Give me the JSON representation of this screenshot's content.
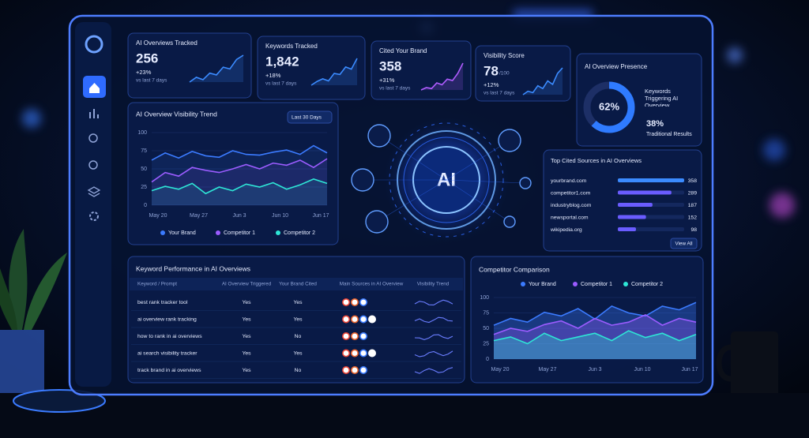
{
  "kpis": [
    {
      "title": "AI Overviews Tracked",
      "value": "256",
      "change": "+23%",
      "note": "vs last 7 days",
      "sparkline": [
        30,
        38,
        34,
        45,
        42,
        55,
        52,
        68,
        75
      ]
    },
    {
      "title": "Keywords Tracked",
      "value": "1,842",
      "change": "+18%",
      "note": "vs last 7 days",
      "sparkline": [
        28,
        35,
        40,
        36,
        50,
        48,
        62,
        58,
        78
      ]
    },
    {
      "title": "Cited Your Brand",
      "value": "358",
      "change": "+31%",
      "note": "vs last 7 days",
      "sparkline": [
        25,
        30,
        28,
        40,
        36,
        48,
        45,
        60,
        82
      ]
    },
    {
      "title": "Visibility Score",
      "value": "78",
      "suffix": "/100",
      "change": "+12%",
      "note": "vs last 7 days",
      "sparkline": [
        35,
        40,
        38,
        48,
        44,
        55,
        50,
        66,
        74
      ]
    }
  ],
  "presence": {
    "title": "AI Overview Presence",
    "primary": {
      "value": 62,
      "label": "62%"
    },
    "primary_text": "Keywords Triggering AI Overview",
    "secondary": {
      "value": 38,
      "label": "38%"
    },
    "secondary_text": "Traditional Results"
  },
  "trend": {
    "type": "line",
    "title": "AI Overview Visibility Trend",
    "filter": "Last 30 Days",
    "ylim": [
      0,
      100
    ],
    "yticks": [
      0,
      25,
      50,
      75,
      100
    ],
    "xticks": [
      "May 20",
      "May 27",
      "Jun 3",
      "Jun 10",
      "Jun 17"
    ],
    "series": [
      {
        "name": "Your Brand",
        "color": "#3b7bff",
        "values": [
          62,
          72,
          65,
          74,
          68,
          66,
          75,
          70,
          69,
          73,
          76,
          70,
          82,
          72
        ]
      },
      {
        "name": "Competitor 1",
        "color": "#9b5cff",
        "values": [
          32,
          45,
          40,
          52,
          48,
          45,
          50,
          56,
          50,
          58,
          55,
          62,
          52,
          64
        ]
      },
      {
        "name": "Competitor 2",
        "color": "#2ee6d6",
        "values": [
          20,
          26,
          22,
          30,
          16,
          25,
          20,
          29,
          25,
          31,
          22,
          28,
          36,
          30
        ]
      }
    ]
  },
  "center": {
    "label": "AI"
  },
  "sources": {
    "title": "Top Cited Sources in AI Overviews",
    "items": [
      {
        "name": "yourbrand.com",
        "value": 358
      },
      {
        "name": "competitor1.com",
        "value": 289
      },
      {
        "name": "industryblog.com",
        "value": 187
      },
      {
        "name": "newsportal.com",
        "value": 152
      },
      {
        "name": "wikipedia.org",
        "value": 98
      }
    ],
    "button": "View All"
  },
  "table": {
    "title": "Keyword Performance in AI Overviews",
    "headers": [
      "Keyword / Prompt",
      "AI Overview Triggered",
      "Your Brand Cited",
      "Main Sources in AI Overview",
      "Visibility Trend"
    ],
    "rows": [
      [
        "best rank tracker tool",
        "Yes",
        "Yes"
      ],
      [
        "ai overview rank tracking",
        "Yes",
        "Yes"
      ],
      [
        "how to rank in ai overviews",
        "Yes",
        "No"
      ],
      [
        "ai search visibility tracker",
        "Yes",
        "Yes"
      ],
      [
        "track brand in ai overviews",
        "Yes",
        "No"
      ]
    ]
  },
  "competitor": {
    "type": "area",
    "title": "Competitor Comparison",
    "ylim": [
      0,
      100
    ],
    "yticks": [
      0,
      25,
      50,
      75,
      100
    ],
    "xticks": [
      "May 20",
      "May 27",
      "Jun 3",
      "Jun 10",
      "Jun 17"
    ],
    "series": [
      {
        "name": "Your Brand",
        "color": "#3b7bff",
        "values": [
          55,
          66,
          60,
          76,
          70,
          82,
          65,
          86,
          75,
          70,
          86,
          80,
          92
        ]
      },
      {
        "name": "Competitor 1",
        "color": "#9b5cff",
        "values": [
          40,
          50,
          45,
          56,
          62,
          50,
          66,
          55,
          60,
          72,
          55,
          66,
          60
        ]
      },
      {
        "name": "Competitor 2",
        "color": "#2ee6d6",
        "values": [
          30,
          36,
          25,
          42,
          30,
          36,
          42,
          30,
          46,
          35,
          42,
          30,
          40
        ]
      }
    ]
  }
}
